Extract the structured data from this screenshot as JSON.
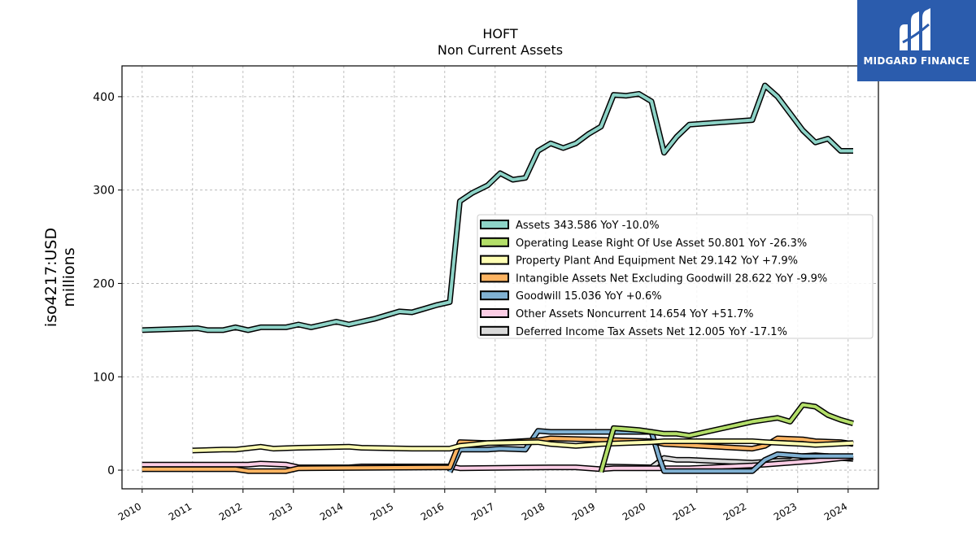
{
  "logo": {
    "text": "MIDGARD FINANCE",
    "icon": "midgard-logo-icon",
    "bg_color": "#2b5cad"
  },
  "chart_data": {
    "type": "line",
    "title": "HOFT",
    "subtitle": "Non Current  Assets",
    "ylabel_line1": "iso4217:USD",
    "ylabel_line2": "millions",
    "xlim": [
      2009.6,
      2024.6
    ],
    "ylim": [
      -20,
      433
    ],
    "yticks": [
      0,
      100,
      200,
      300,
      400
    ],
    "xticks": [
      "2010",
      "2011",
      "2012",
      "2013",
      "2014",
      "2015",
      "2016",
      "2017",
      "2018",
      "2019",
      "2020",
      "2021",
      "2022",
      "2023",
      "2024"
    ],
    "grid": true,
    "legend_position": "center-right",
    "series": [
      {
        "name": "Assets",
        "legend": "Assets  343.586 YoY -10.0%",
        "color": "#8dd3c7",
        "x": [
          2010.0,
          2011.1,
          2011.3,
          2011.6,
          2011.85,
          2012.1,
          2012.35,
          2012.85,
          2013.1,
          2013.35,
          2013.6,
          2013.85,
          2014.1,
          2014.35,
          2014.6,
          2014.85,
          2015.1,
          2015.35,
          2015.6,
          2015.85,
          2016.1,
          2016.3,
          2016.55,
          2016.85,
          2017.1,
          2017.35,
          2017.6,
          2017.85,
          2018.1,
          2018.35,
          2018.6,
          2018.85,
          2019.1,
          2019.35,
          2019.6,
          2019.85,
          2020.1,
          2020.35,
          2020.6,
          2020.85,
          2022.1,
          2022.35,
          2022.6,
          2022.85,
          2023.1,
          2023.35,
          2023.6,
          2023.85,
          2024.1
        ],
        "y": [
          150,
          152,
          150,
          150,
          153,
          150,
          153,
          153,
          156,
          153,
          156,
          159,
          156,
          159,
          162,
          166,
          170,
          169,
          173,
          177,
          180,
          288,
          297,
          305,
          318,
          311,
          313,
          342,
          350,
          345,
          350,
          360,
          368,
          402,
          401,
          403,
          395,
          340,
          357,
          370,
          375,
          412,
          400,
          382,
          364,
          351,
          355,
          342,
          342
        ]
      },
      {
        "name": "Operating Lease Right Of Use Asset",
        "legend": "Operating Lease Right Of Use Asset  50.801 YoY -26.3%",
        "color": "#b3de69",
        "x": [
          2019.1,
          2019.35,
          2019.6,
          2019.85,
          2020.1,
          2020.35,
          2020.6,
          2020.85,
          2022.1,
          2022.35,
          2022.6,
          2022.85,
          2023.1,
          2023.35,
          2023.6,
          2023.85,
          2024.1
        ],
        "y": [
          -2,
          45,
          44,
          43,
          41,
          39,
          39,
          37,
          52,
          54,
          56,
          52,
          70,
          68,
          59,
          54,
          50
        ]
      },
      {
        "name": "Property Plant And Equipment Net",
        "legend": "Property Plant And Equipment Net  29.142 YoY +7.9%",
        "color": "#ffffb3",
        "x": [
          2011.0,
          2011.6,
          2011.85,
          2012.35,
          2012.6,
          2013.1,
          2014.1,
          2014.35,
          2015.35,
          2016.1,
          2016.3,
          2016.85,
          2017.85,
          2018.1,
          2018.6,
          2019.1,
          2020.1,
          2020.35,
          2022.1,
          2022.35,
          2023.1,
          2023.35,
          2024.1
        ],
        "y": [
          21,
          22,
          22,
          25,
          23,
          24,
          25,
          24,
          23,
          23,
          26,
          29,
          30,
          28,
          26,
          28,
          30,
          31,
          31,
          30,
          28,
          27,
          29
        ]
      },
      {
        "name": "Intangible Assets Net Excluding Goodwill",
        "legend": "Intangible Assets Net Excluding Goodwill  28.622 YoY -9.9%",
        "color": "#fdb462",
        "x": [
          2010.0,
          2011.6,
          2011.85,
          2012.1,
          2012.85,
          2013.1,
          2016.1,
          2016.3,
          2016.85,
          2017.85,
          2018.1,
          2020.1,
          2020.35,
          2022.1,
          2022.35,
          2022.6,
          2023.1,
          2023.35,
          2023.85,
          2024.1
        ],
        "y": [
          1,
          1,
          1,
          -1,
          -1,
          2,
          3,
          30,
          29,
          32,
          34,
          31,
          28,
          23,
          26,
          34,
          33,
          31,
          30,
          28
        ]
      },
      {
        "name": "Goodwill",
        "legend": "Goodwill  15.036 YoY +0.6%",
        "color": "#80b1d3",
        "x": [
          2016.1,
          2016.3,
          2016.85,
          2017.1,
          2017.6,
          2017.85,
          2018.1,
          2020.1,
          2020.25,
          2020.35,
          2022.1,
          2022.35,
          2022.6,
          2023.1,
          2023.35,
          2024.1
        ],
        "y": [
          -2,
          22,
          22,
          23,
          22,
          42,
          41,
          41,
          14,
          -1,
          -1,
          11,
          17,
          15,
          15,
          15
        ]
      },
      {
        "name": "Other Assets Noncurrent",
        "legend": "Other Assets Noncurrent  14.654 YoY +51.7%",
        "color": "#fccde5",
        "x": [
          2010.0,
          2011.85,
          2012.1,
          2012.35,
          2012.85,
          2013.1,
          2014.1,
          2014.35,
          2015.1,
          2016.1,
          2016.3,
          2018.1,
          2018.6,
          2019.1,
          2019.35,
          2020.1,
          2020.35,
          2020.85,
          2022.1,
          2022.35,
          2023.1,
          2023.35,
          2024.1
        ],
        "y": [
          6,
          6,
          6,
          7,
          6,
          3,
          3,
          4,
          4,
          4,
          2,
          3,
          3,
          1,
          2,
          2,
          2,
          2,
          5,
          6,
          9,
          10,
          14
        ]
      },
      {
        "name": "Deferred Income Tax Assets Net",
        "legend": "Deferred Income Tax Assets Net  12.005 YoY -17.1%",
        "color": "#d9d9d9",
        "x": [
          2019.1,
          2020.1,
          2020.35,
          2020.6,
          2020.85,
          2022.1,
          2022.35,
          2022.6,
          2022.85,
          2023.1,
          2023.35,
          2023.6,
          2023.85,
          2024.1
        ],
        "y": [
          4,
          3,
          13,
          11,
          11,
          8,
          9,
          10,
          10,
          15,
          16,
          15,
          13,
          12
        ]
      }
    ]
  }
}
